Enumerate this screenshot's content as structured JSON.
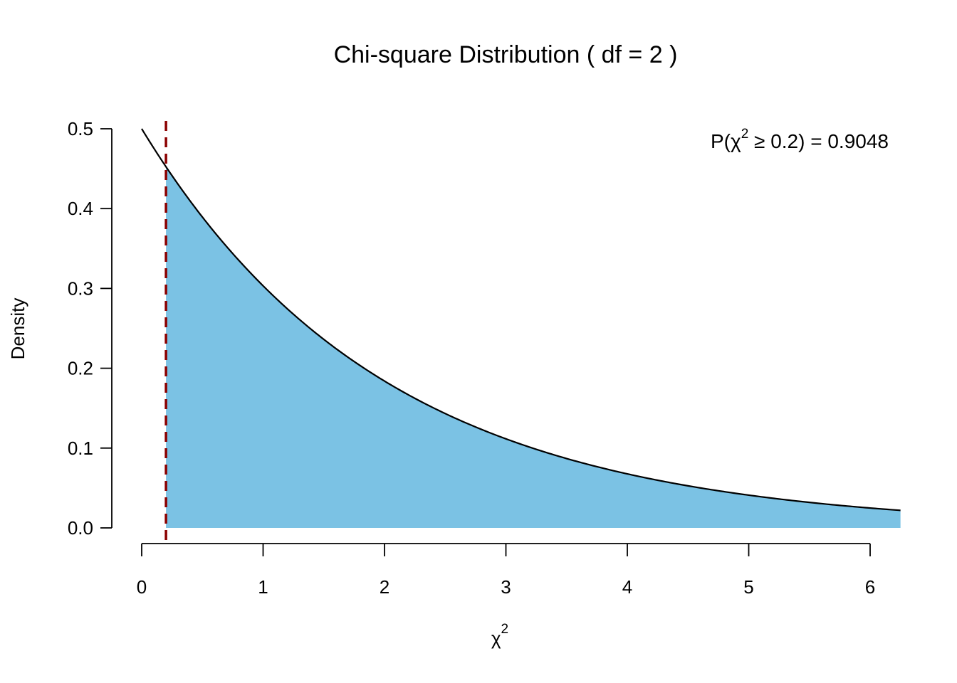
{
  "chart_data": {
    "type": "area",
    "title": "Chi-square Distribution ( df = 2 )",
    "xlabel": "χ",
    "xlabel_superscript": "2",
    "ylabel": "Density",
    "xlim": [
      0,
      6.25
    ],
    "ylim": [
      0,
      0.5
    ],
    "x_ticks": [
      "0",
      "1",
      "2",
      "3",
      "4",
      "5",
      "6"
    ],
    "y_ticks": [
      "0.0",
      "0.1",
      "0.2",
      "0.3",
      "0.4",
      "0.5"
    ],
    "grid": false,
    "df": 2,
    "critical_value": 0.2,
    "density_samples": {
      "x": [
        0,
        0.2,
        0.5,
        1,
        1.5,
        2,
        2.5,
        3,
        3.5,
        4,
        4.5,
        5,
        5.5,
        6,
        6.25
      ],
      "y": [
        0.5,
        0.4524,
        0.3894,
        0.3033,
        0.2362,
        0.1839,
        0.1433,
        0.1116,
        0.0869,
        0.0677,
        0.0527,
        0.041,
        0.032,
        0.0249,
        0.022
      ]
    },
    "shaded_region": {
      "from": 0.2,
      "to": 6.25,
      "color": "#7BC2E4"
    },
    "curve_color": "#000000",
    "critical_line_color": "#8B0000",
    "annotation": {
      "prefix": "P(χ",
      "superscript": "2",
      "suffix": " ≥ 0.2) = 0.9048"
    }
  }
}
